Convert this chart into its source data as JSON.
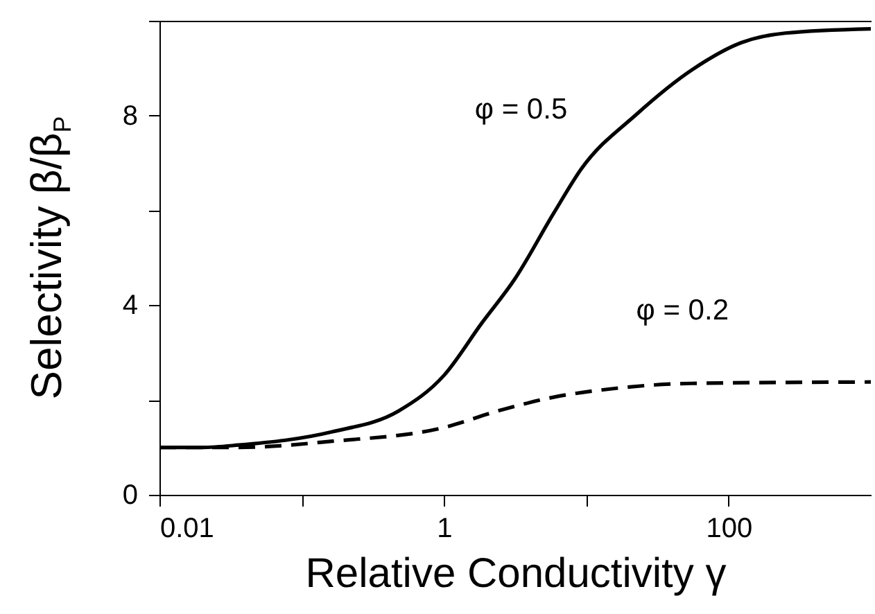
{
  "chart_data": {
    "type": "line",
    "xlabel": "Relative Conductivity γ",
    "ylabel": "Selectivity β/β$_{P}$",
    "log": "x",
    "xlim": [
      0.01,
      1000
    ],
    "xticks": [
      0.01,
      {
        "value": 0.1,
        "label": null
      },
      1,
      {
        "value": 10,
        "label": null
      },
      100
    ],
    "ylim": [
      0,
      10
    ],
    "yticks": [
      0,
      {
        "value": 2,
        "label": null
      },
      4,
      {
        "value": 6,
        "label": null
      },
      8,
      {
        "value": 10,
        "label": null
      }
    ],
    "grid": false,
    "legend": false,
    "marker": "none",
    "series": [
      {
        "name": "φ = 0.5",
        "color": "#000000",
        "line_style": "solid",
        "x": [
          0.01,
          0.02,
          0.036,
          0.164,
          0.48,
          1,
          1.84,
          3.14,
          5.9,
          9.2,
          22.6,
          55,
          123,
          251,
          1000
        ],
        "values": [
          1.0,
          1.0,
          1.05,
          1.33,
          1.77,
          2.52,
          3.62,
          4.55,
          5.94,
          6.87,
          8.03,
          8.96,
          9.54,
          9.74,
          9.83
        ]
      },
      {
        "name": "φ = 0.2",
        "color": "#000000",
        "line_style": "dashed",
        "x": [
          0.01,
          0.036,
          0.164,
          1,
          2.4,
          5.9,
          14.4,
          55,
          1000
        ],
        "values": [
          1.0,
          1.0,
          1.13,
          1.42,
          1.77,
          2.06,
          2.23,
          2.35,
          2.38
        ]
      }
    ]
  }
}
